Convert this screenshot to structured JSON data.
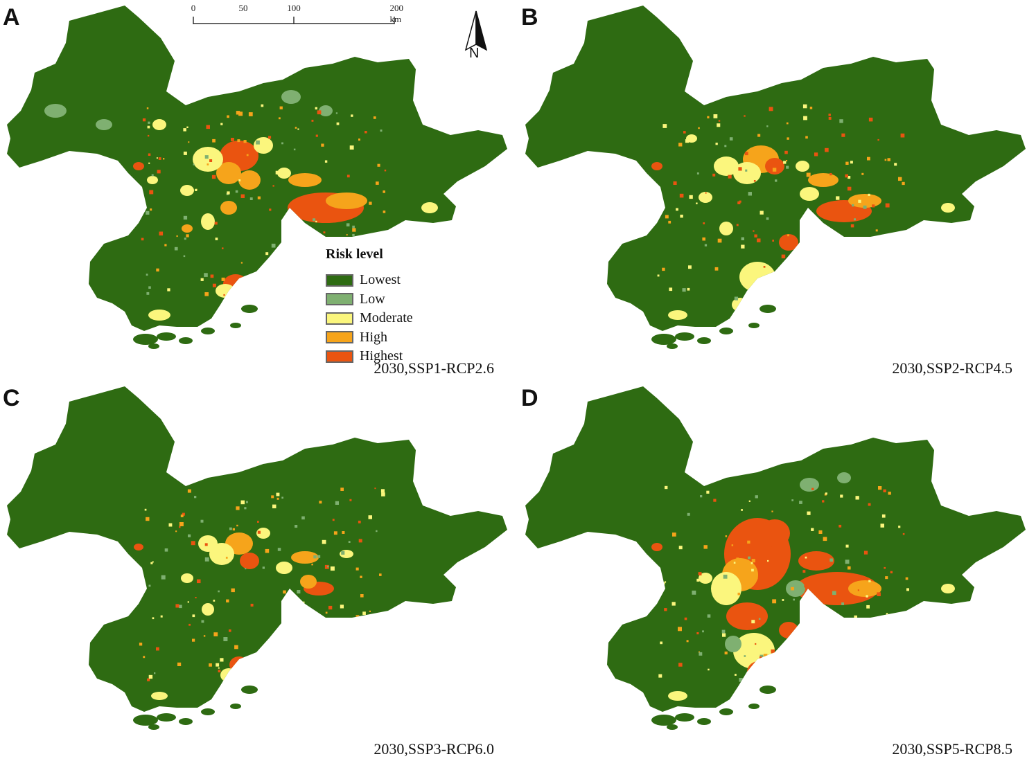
{
  "panels": [
    {
      "letter": "A",
      "scenario": "2030,SSP1-RCP2.6"
    },
    {
      "letter": "B",
      "scenario": "2030,SSP2-RCP4.5"
    },
    {
      "letter": "C",
      "scenario": "2030,SSP3-RCP6.0"
    },
    {
      "letter": "D",
      "scenario": "2030,SSP5-RCP8.5"
    }
  ],
  "scale_bar": {
    "ticks": [
      "0",
      "50",
      "100",
      "200 km"
    ]
  },
  "north_arrow": {
    "label": "N"
  },
  "legend": {
    "title": "Risk level",
    "items": [
      {
        "label": "Lowest",
        "color": "#2e6b12"
      },
      {
        "label": "Low",
        "color": "#7fb071"
      },
      {
        "label": "Moderate",
        "color": "#fbf67d"
      },
      {
        "label": "High",
        "color": "#f6a41b"
      },
      {
        "label": "Highest",
        "color": "#ea5410"
      }
    ]
  },
  "colors": {
    "lowest": "#2e6b12",
    "low": "#7fb071",
    "moderate": "#fbf67d",
    "high": "#f6a41b",
    "highest": "#ea5410"
  }
}
